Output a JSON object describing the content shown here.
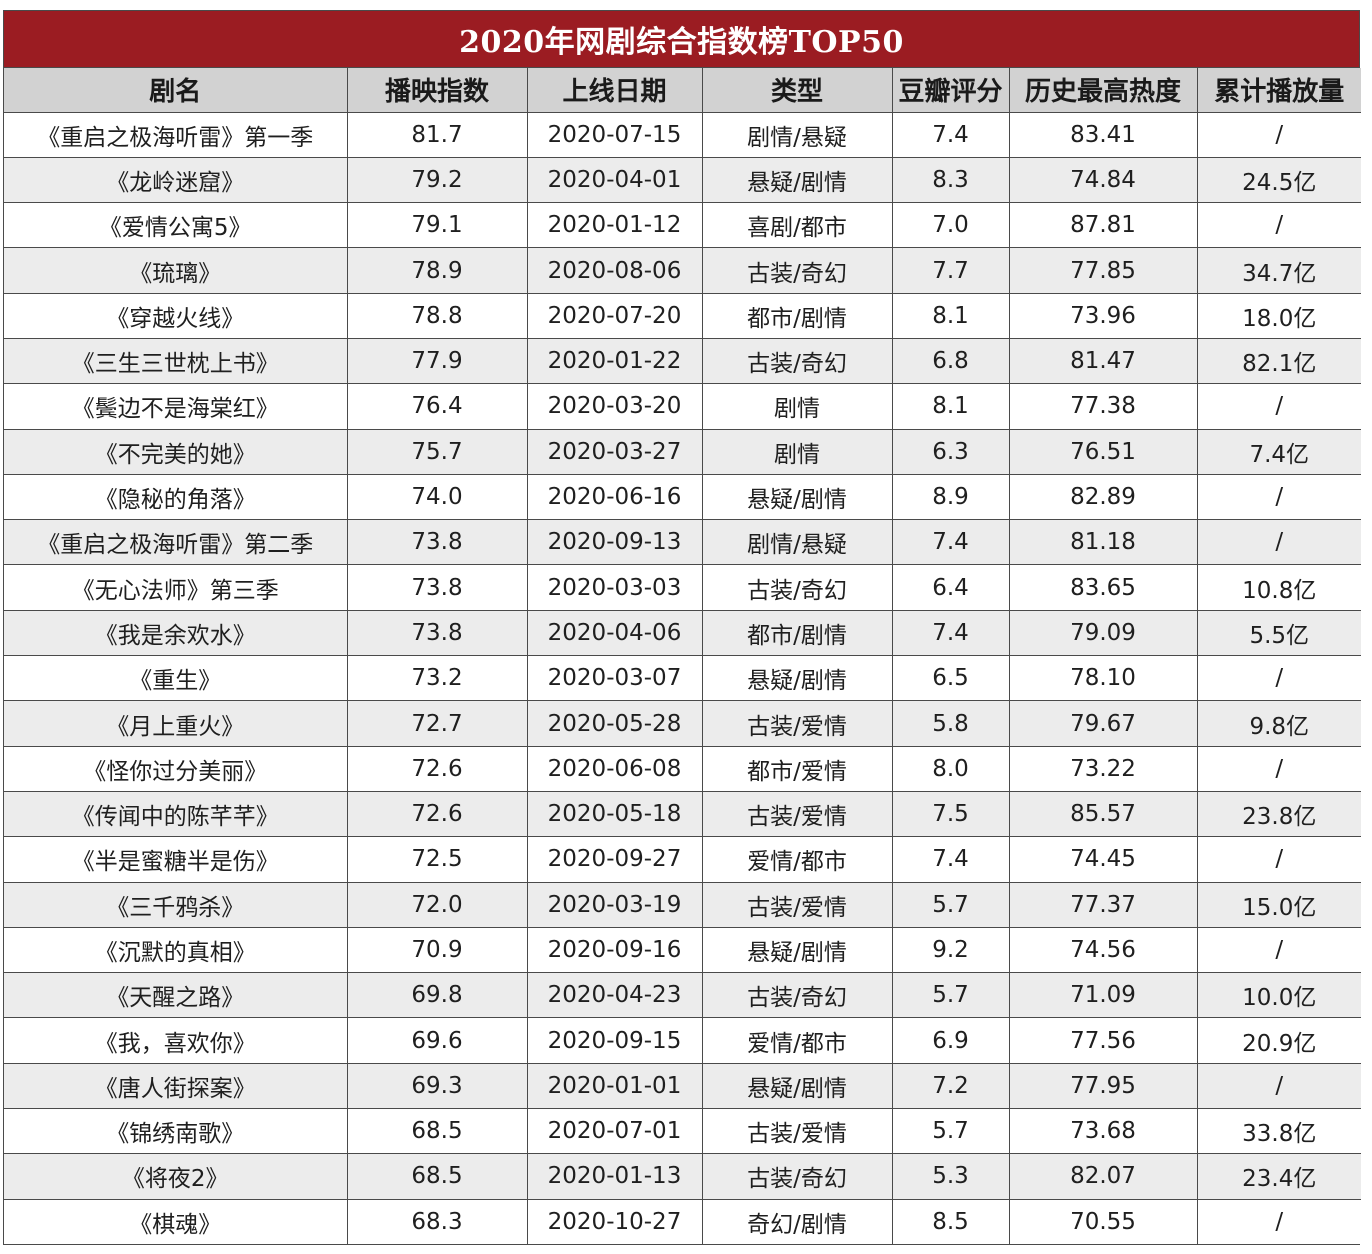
{
  "title": "2020年网剧综合指数榜TOP50",
  "columns": [
    "剧名",
    "播映指数",
    "上线日期",
    "类型",
    "豆瓣评分",
    "历史最高热度",
    "累计播放量"
  ],
  "rows": [
    [
      "《重启之极海听雷》第一季",
      "81.7",
      "2020-07-15",
      "剧情/悬疑",
      "7.4",
      "83.41",
      "/"
    ],
    [
      "《龙岭迷窟》",
      "79.2",
      "2020-04-01",
      "悬疑/剧情",
      "8.3",
      "74.84",
      "24.5亿"
    ],
    [
      "《爱情公寓5》",
      "79.1",
      "2020-01-12",
      "喜剧/都市",
      "7.0",
      "87.81",
      "/"
    ],
    [
      "《琉璃》",
      "78.9",
      "2020-08-06",
      "古装/奇幻",
      "7.7",
      "77.85",
      "34.7亿"
    ],
    [
      "《穿越火线》",
      "78.8",
      "2020-07-20",
      "都市/剧情",
      "8.1",
      "73.96",
      "18.0亿"
    ],
    [
      "《三生三世枕上书》",
      "77.9",
      "2020-01-22",
      "古装/奇幻",
      "6.8",
      "81.47",
      "82.1亿"
    ],
    [
      "《鬓边不是海棠红》",
      "76.4",
      "2020-03-20",
      "剧情",
      "8.1",
      "77.38",
      "/"
    ],
    [
      "《不完美的她》",
      "75.7",
      "2020-03-27",
      "剧情",
      "6.3",
      "76.51",
      "7.4亿"
    ],
    [
      "《隐秘的角落》",
      "74.0",
      "2020-06-16",
      "悬疑/剧情",
      "8.9",
      "82.89",
      "/"
    ],
    [
      "《重启之极海听雷》第二季",
      "73.8",
      "2020-09-13",
      "剧情/悬疑",
      "7.4",
      "81.18",
      "/"
    ],
    [
      "《无心法师》第三季",
      "73.8",
      "2020-03-03",
      "古装/奇幻",
      "6.4",
      "83.65",
      "10.8亿"
    ],
    [
      "《我是余欢水》",
      "73.8",
      "2020-04-06",
      "都市/剧情",
      "7.4",
      "79.09",
      "5.5亿"
    ],
    [
      "《重生》",
      "73.2",
      "2020-03-07",
      "悬疑/剧情",
      "6.5",
      "78.10",
      "/"
    ],
    [
      "《月上重火》",
      "72.7",
      "2020-05-28",
      "古装/爱情",
      "5.8",
      "79.67",
      "9.8亿"
    ],
    [
      "《怪你过分美丽》",
      "72.6",
      "2020-06-08",
      "都市/爱情",
      "8.0",
      "73.22",
      "/"
    ],
    [
      "《传闻中的陈芊芊》",
      "72.6",
      "2020-05-18",
      "古装/爱情",
      "7.5",
      "85.57",
      "23.8亿"
    ],
    [
      "《半是蜜糖半是伤》",
      "72.5",
      "2020-09-27",
      "爱情/都市",
      "7.4",
      "74.45",
      "/"
    ],
    [
      "《三千鸦杀》",
      "72.0",
      "2020-03-19",
      "古装/爱情",
      "5.7",
      "77.37",
      "15.0亿"
    ],
    [
      "《沉默的真相》",
      "70.9",
      "2020-09-16",
      "悬疑/剧情",
      "9.2",
      "74.56",
      "/"
    ],
    [
      "《天醒之路》",
      "69.8",
      "2020-04-23",
      "古装/奇幻",
      "5.7",
      "71.09",
      "10.0亿"
    ],
    [
      "《我，喜欢你》",
      "69.6",
      "2020-09-15",
      "爱情/都市",
      "6.9",
      "77.56",
      "20.9亿"
    ],
    [
      "《唐人街探案》",
      "69.3",
      "2020-01-01",
      "悬疑/剧情",
      "7.2",
      "77.95",
      "/"
    ],
    [
      "《锦绣南歌》",
      "68.5",
      "2020-07-01",
      "古装/爱情",
      "5.7",
      "73.68",
      "33.8亿"
    ],
    [
      "《将夜2》",
      "68.5",
      "2020-01-13",
      "古装/奇幻",
      "5.3",
      "82.07",
      "23.4亿"
    ],
    [
      "《棋魂》",
      "68.3",
      "2020-10-27",
      "奇幻/剧情",
      "8.5",
      "70.55",
      "/"
    ]
  ],
  "colors": {
    "title_bg": "#9b1c22",
    "title_text": "#ffffff",
    "header_bg": "#d2d2d2",
    "row_alt_bg": "#ececec",
    "border": "#4a4a4a"
  }
}
